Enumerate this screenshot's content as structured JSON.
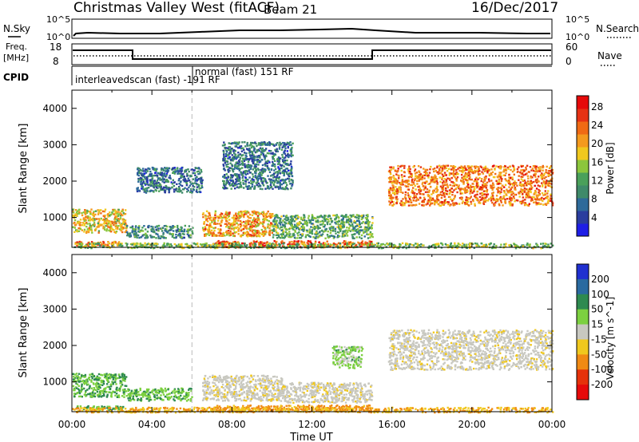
{
  "header": {
    "title": "Christmas Valley West (fitACF)",
    "beam": "Beam 21",
    "date": "16/Dec/2017"
  },
  "nsky_panel": {
    "left_label": "N.Sky",
    "right_label": "N.Search",
    "left_ticks": [
      "10^5",
      "10^0"
    ],
    "right_ticks": [
      "10^5",
      "10^0"
    ]
  },
  "freq_panel": {
    "left_label_1": "Freq.",
    "left_label_2": "[MHz]",
    "right_label": "Nave",
    "left_ticks": [
      "18",
      "8"
    ],
    "right_ticks": [
      "60",
      "0"
    ]
  },
  "cpid": {
    "label": "CPID",
    "mode_1": "interleavedscan (fast) -191 RF",
    "mode_2": "normal (fast) 151 RF"
  },
  "x_axis": {
    "label": "Time UT",
    "ticks": [
      "00:00",
      "04:00",
      "08:00",
      "12:00",
      "16:00",
      "20:00",
      "00:00"
    ]
  },
  "power_colorbar": {
    "label": "Power [dB]",
    "ticks": [
      "4",
      "8",
      "12",
      "16",
      "20",
      "24",
      "28"
    ],
    "colors": [
      "#1e1ee6",
      "#2a3d9e",
      "#2e6a9a",
      "#3f8a6a",
      "#4aa05a",
      "#8cc63c",
      "#f0c81e",
      "#f49a1e",
      "#f06a14",
      "#e63214",
      "#e60a0a"
    ]
  },
  "velocity_colorbar": {
    "label": "Velocity [m s^-1]",
    "ticks": [
      "200",
      "100",
      "50",
      "15",
      "-15",
      "-50",
      "-100",
      "-200"
    ],
    "colors": [
      "#2030d0",
      "#2a6aa0",
      "#2e8a50",
      "#7cd040",
      "#c8c8c0",
      "#f0c81e",
      "#f08a14",
      "#e6320a",
      "#e60a0a"
    ]
  },
  "chart_data": [
    {
      "type": "heatmap",
      "title": "",
      "xlabel": "",
      "ylabel": "Slant Range [km]",
      "xlim_hours": [
        0,
        24
      ],
      "ylim_km": [
        180,
        4500
      ],
      "y_ticks": [
        1000,
        2000,
        3000,
        4000
      ],
      "value_label": "Power [dB]",
      "regions": [
        {
          "t_start": 0.0,
          "t_end": 2.7,
          "r_min": 600,
          "r_max": 1250,
          "value_db": 18
        },
        {
          "t_start": 2.7,
          "t_end": 6.0,
          "r_min": 450,
          "r_max": 800,
          "value_db": 10
        },
        {
          "t_start": 0.1,
          "t_end": 2.4,
          "r_min": 250,
          "r_max": 360,
          "value_db": 22
        },
        {
          "t_start": 6.5,
          "t_end": 10.0,
          "r_min": 500,
          "r_max": 1200,
          "value_db": 20
        },
        {
          "t_start": 10.0,
          "t_end": 15.0,
          "r_min": 450,
          "r_max": 1100,
          "value_db": 12
        },
        {
          "t_start": 7.0,
          "t_end": 15.0,
          "r_min": 200,
          "r_max": 380,
          "value_db": 24
        },
        {
          "t_start": 3.2,
          "t_end": 6.5,
          "r_min": 1700,
          "r_max": 2400,
          "value_db": 8
        },
        {
          "t_start": 7.5,
          "t_end": 11.0,
          "r_min": 1800,
          "r_max": 3100,
          "value_db": 8
        },
        {
          "t_start": 15.8,
          "t_end": 24.0,
          "r_min": 1350,
          "r_max": 2450,
          "value_db": 22
        },
        {
          "t_start": 0.0,
          "t_end": 24.0,
          "r_min": 180,
          "r_max": 320,
          "value_db": 14
        }
      ]
    },
    {
      "type": "heatmap",
      "title": "",
      "xlabel": "Time UT",
      "ylabel": "Slant Range [km]",
      "xlim_hours": [
        0,
        24
      ],
      "ylim_km": [
        180,
        4500
      ],
      "y_ticks": [
        1000,
        2000,
        3000,
        4000
      ],
      "value_label": "Velocity [m s^-1]",
      "regions": [
        {
          "t_start": 0.0,
          "t_end": 2.7,
          "r_min": 600,
          "r_max": 1250,
          "value_ms": 30
        },
        {
          "t_start": 2.7,
          "t_end": 6.0,
          "r_min": 500,
          "r_max": 850,
          "value_ms": 30
        },
        {
          "t_start": 0.2,
          "t_end": 2.6,
          "r_min": 250,
          "r_max": 360,
          "value_ms": 30
        },
        {
          "t_start": 6.5,
          "t_end": 10.5,
          "r_min": 500,
          "r_max": 1200,
          "value_ms": -5
        },
        {
          "t_start": 10.5,
          "t_end": 15.0,
          "r_min": 450,
          "r_max": 1000,
          "value_ms": -5
        },
        {
          "t_start": 7.0,
          "t_end": 15.0,
          "r_min": 200,
          "r_max": 380,
          "value_ms": -40
        },
        {
          "t_start": 13.0,
          "t_end": 14.5,
          "r_min": 1400,
          "r_max": 2000,
          "value_ms": 20
        },
        {
          "t_start": 15.8,
          "t_end": 24.0,
          "r_min": 1350,
          "r_max": 2450,
          "value_ms": -5
        },
        {
          "t_start": 0.0,
          "t_end": 24.0,
          "r_min": 180,
          "r_max": 320,
          "value_ms": -30
        }
      ]
    }
  ]
}
